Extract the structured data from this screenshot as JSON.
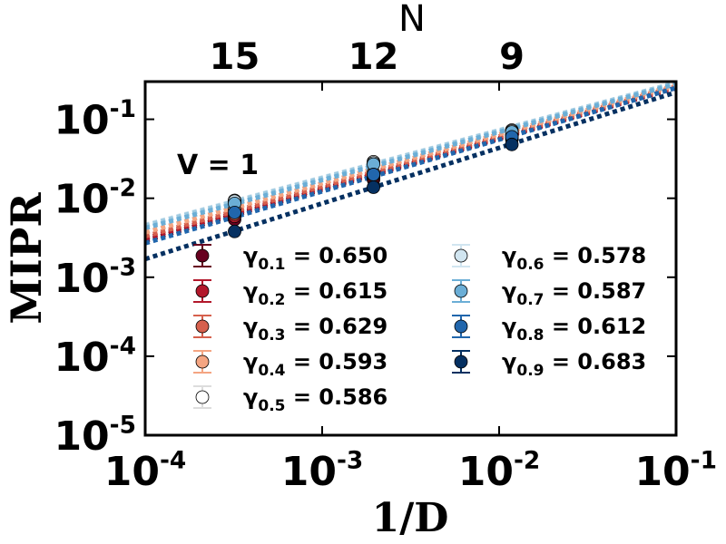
{
  "chart_data": {
    "type": "scatter",
    "xscale": "log",
    "yscale": "log",
    "xlim": [
      0.0001,
      0.1
    ],
    "ylim": [
      1e-05,
      0.3
    ],
    "xlabel": "1/D",
    "ylabel": "MIPR",
    "x_ticks": [
      {
        "value": 0.0001,
        "base": "10",
        "exp": "-4"
      },
      {
        "value": 0.001,
        "base": "10",
        "exp": "-3"
      },
      {
        "value": 0.01,
        "base": "10",
        "exp": "-2"
      },
      {
        "value": 0.1,
        "base": "10",
        "exp": "-1"
      }
    ],
    "y_ticks": [
      {
        "value": 1e-05,
        "base": "10",
        "exp": "-5"
      },
      {
        "value": 0.0001,
        "base": "10",
        "exp": "-4"
      },
      {
        "value": 0.001,
        "base": "10",
        "exp": "-3"
      },
      {
        "value": 0.01,
        "base": "10",
        "exp": "-2"
      },
      {
        "value": 0.1,
        "base": "10",
        "exp": "-1"
      }
    ],
    "top_axis": {
      "label": "N",
      "ticks": [
        {
          "label": "15",
          "x": 0.00032
        },
        {
          "label": "12",
          "x": 0.00195
        },
        {
          "label": "9",
          "x": 0.0118
        }
      ]
    },
    "annotation": "V = 1",
    "x": [
      0.00032,
      0.00195,
      0.0118
    ],
    "series": [
      {
        "name": "γ0.1",
        "sub": "0.1",
        "value_text": "0.650",
        "color": "#67001f",
        "values": [
          0.0054,
          0.0172,
          0.056
        ]
      },
      {
        "name": "γ0.2",
        "sub": "0.2",
        "value_text": "0.615",
        "color": "#b2182b",
        "values": [
          0.0059,
          0.0185,
          0.059
        ]
      },
      {
        "name": "γ0.3",
        "sub": "0.3",
        "value_text": "0.629",
        "color": "#d6604d",
        "values": [
          0.0063,
          0.0195,
          0.061
        ]
      },
      {
        "name": "γ0.4",
        "sub": "0.4",
        "value_text": "0.593",
        "color": "#f4a582",
        "values": [
          0.0072,
          0.021,
          0.063
        ]
      },
      {
        "name": "γ0.5",
        "sub": "0.5",
        "value_text": "0.586",
        "color": "#ffffff",
        "values": [
          0.0094,
          0.029,
          0.073
        ]
      },
      {
        "name": "γ0.6",
        "sub": "0.6",
        "value_text": "0.578",
        "color": "#d1e5f0",
        "values": [
          0.0092,
          0.028,
          0.071
        ]
      },
      {
        "name": "γ0.7",
        "sub": "0.7",
        "value_text": "0.587",
        "color": "#6baed6",
        "values": [
          0.0086,
          0.027,
          0.069
        ]
      },
      {
        "name": "γ0.8",
        "sub": "0.8",
        "value_text": "0.612",
        "color": "#2166ac",
        "values": [
          0.0066,
          0.02,
          0.06
        ]
      },
      {
        "name": "γ0.9",
        "sub": "0.9",
        "value_text": "0.683",
        "color": "#053061",
        "values": [
          0.0038,
          0.0138,
          0.048
        ]
      }
    ],
    "fit_lines": [
      {
        "color": "#67001f",
        "y_at_xmin": 0.0029,
        "y_at_xmax": 0.25
      },
      {
        "color": "#b2182b",
        "y_at_xmin": 0.0031,
        "y_at_xmax": 0.25
      },
      {
        "color": "#d6604d",
        "y_at_xmin": 0.0033,
        "y_at_xmax": 0.26
      },
      {
        "color": "#f4a582",
        "y_at_xmin": 0.0037,
        "y_at_xmax": 0.27
      },
      {
        "color": "#d1e5f0",
        "y_at_xmin": 0.0046,
        "y_at_xmax": 0.29
      },
      {
        "color": "#9ecae1",
        "y_at_xmin": 0.0045,
        "y_at_xmax": 0.29
      },
      {
        "color": "#6baed6",
        "y_at_xmin": 0.0042,
        "y_at_xmax": 0.28
      },
      {
        "color": "#2166ac",
        "y_at_xmin": 0.0027,
        "y_at_xmax": 0.25
      },
      {
        "color": "#053061",
        "y_at_xmin": 0.0017,
        "y_at_xmax": 0.22
      }
    ]
  }
}
